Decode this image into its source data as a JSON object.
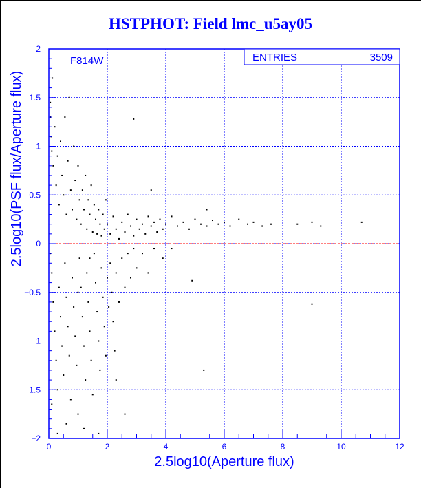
{
  "chart_data": {
    "type": "scatter",
    "title": "HSTPHOT: Field lmc_u5ay05",
    "xlabel": "2.5log10(Aperture flux)",
    "ylabel": "2.5log10(PSF flux/Aperture flux)",
    "xlim": [
      0,
      12
    ],
    "ylim": [
      -2,
      2
    ],
    "xticks": [
      "0",
      "2",
      "4",
      "6",
      "8",
      "10",
      "12"
    ],
    "yticks": [
      "2",
      "1.5",
      "1",
      "0.5",
      "0",
      "-0.5",
      "-1",
      "-1.5",
      "-2"
    ],
    "grid": true,
    "annotation": "F814W",
    "stats_box": {
      "label": "ENTRIES",
      "value": "3509"
    },
    "reference_line": {
      "y": 0,
      "color": "#ff0000"
    },
    "marker_color": "#000000",
    "points": [
      [
        0.05,
        1.45
      ],
      [
        0.05,
        1.3
      ],
      [
        0.08,
        1.1
      ],
      [
        0.1,
        0.95
      ],
      [
        0.12,
        1.7
      ],
      [
        0.15,
        0.8
      ],
      [
        0.2,
        1.2
      ],
      [
        0.25,
        0.6
      ],
      [
        0.3,
        0.9
      ],
      [
        0.35,
        0.4
      ],
      [
        0.4,
        1.05
      ],
      [
        0.45,
        0.7
      ],
      [
        0.5,
        0.5
      ],
      [
        0.55,
        1.3
      ],
      [
        0.6,
        0.3
      ],
      [
        0.65,
        0.85
      ],
      [
        0.7,
        1.5
      ],
      [
        0.75,
        0.55
      ],
      [
        0.8,
        0.35
      ],
      [
        0.85,
        1.0
      ],
      [
        0.9,
        0.65
      ],
      [
        0.95,
        0.25
      ],
      [
        1.0,
        0.8
      ],
      [
        1.05,
        0.45
      ],
      [
        1.1,
        0.2
      ],
      [
        1.15,
        0.55
      ],
      [
        1.2,
        0.35
      ],
      [
        1.25,
        0.7
      ],
      [
        1.3,
        0.15
      ],
      [
        1.35,
        0.45
      ],
      [
        1.4,
        0.3
      ],
      [
        1.45,
        0.6
      ],
      [
        1.5,
        0.12
      ],
      [
        1.55,
        0.4
      ],
      [
        1.6,
        0.25
      ],
      [
        1.65,
        0.1
      ],
      [
        1.7,
        0.35
      ],
      [
        1.75,
        0.2
      ],
      [
        1.8,
        0.08
      ],
      [
        1.85,
        0.3
      ],
      [
        1.9,
        0.15
      ],
      [
        1.95,
        0.45
      ],
      [
        2.0,
        0.2
      ],
      [
        2.1,
        0.1
      ],
      [
        2.2,
        0.28
      ],
      [
        2.3,
        0.15
      ],
      [
        2.4,
        0.05
      ],
      [
        2.5,
        0.22
      ],
      [
        2.6,
        0.12
      ],
      [
        2.7,
        0.3
      ],
      [
        2.8,
        0.18
      ],
      [
        2.9,
        0.08
      ],
      [
        3.0,
        0.25
      ],
      [
        3.1,
        0.15
      ],
      [
        3.2,
        0.2
      ],
      [
        3.3,
        0.1
      ],
      [
        3.4,
        0.28
      ],
      [
        3.5,
        0.18
      ],
      [
        3.6,
        0.22
      ],
      [
        3.7,
        0.12
      ],
      [
        3.8,
        0.25
      ],
      [
        3.9,
        0.15
      ],
      [
        4.0,
        0.2
      ],
      [
        4.2,
        0.28
      ],
      [
        4.4,
        0.18
      ],
      [
        4.6,
        0.22
      ],
      [
        4.8,
        0.15
      ],
      [
        5.0,
        0.25
      ],
      [
        5.2,
        0.2
      ],
      [
        5.4,
        0.18
      ],
      [
        5.6,
        0.24
      ],
      [
        5.8,
        0.2
      ],
      [
        6.0,
        0.22
      ],
      [
        6.2,
        0.18
      ],
      [
        6.5,
        0.25
      ],
      [
        6.8,
        0.2
      ],
      [
        7.0,
        0.22
      ],
      [
        7.3,
        0.18
      ],
      [
        7.6,
        0.2
      ],
      [
        8.5,
        0.2
      ],
      [
        9.0,
        0.22
      ],
      [
        9.3,
        0.18
      ],
      [
        10.7,
        0.22
      ],
      [
        2.9,
        1.28
      ],
      [
        5.4,
        0.35
      ],
      [
        3.5,
        0.55
      ],
      [
        0.05,
        -0.1
      ],
      [
        0.1,
        -0.3
      ],
      [
        0.15,
        -0.6
      ],
      [
        0.2,
        -0.9
      ],
      [
        0.25,
        -1.2
      ],
      [
        0.3,
        -1.5
      ],
      [
        0.35,
        -0.45
      ],
      [
        0.4,
        -0.75
      ],
      [
        0.45,
        -1.05
      ],
      [
        0.5,
        -1.35
      ],
      [
        0.55,
        -0.2
      ],
      [
        0.6,
        -0.55
      ],
      [
        0.65,
        -0.85
      ],
      [
        0.7,
        -1.15
      ],
      [
        0.75,
        -1.6
      ],
      [
        0.8,
        -0.35
      ],
      [
        0.85,
        -0.65
      ],
      [
        0.9,
        -0.95
      ],
      [
        0.95,
        -1.25
      ],
      [
        1.0,
        -1.75
      ],
      [
        1.05,
        -0.15
      ],
      [
        1.1,
        -0.45
      ],
      [
        1.15,
        -0.75
      ],
      [
        1.2,
        -1.05
      ],
      [
        1.25,
        -1.4
      ],
      [
        1.3,
        -0.3
      ],
      [
        1.35,
        -0.6
      ],
      [
        1.4,
        -0.9
      ],
      [
        1.45,
        -1.2
      ],
      [
        1.5,
        -1.55
      ],
      [
        1.55,
        -0.1
      ],
      [
        1.6,
        -0.4
      ],
      [
        1.65,
        -0.7
      ],
      [
        1.7,
        -1.0
      ],
      [
        1.75,
        -1.3
      ],
      [
        1.8,
        -0.25
      ],
      [
        1.85,
        -0.55
      ],
      [
        1.9,
        -0.85
      ],
      [
        1.95,
        -1.15
      ],
      [
        2.0,
        -0.35
      ],
      [
        2.05,
        -0.65
      ],
      [
        2.1,
        -0.2
      ],
      [
        2.15,
        -0.5
      ],
      [
        2.2,
        -0.8
      ],
      [
        2.25,
        -1.1
      ],
      [
        2.3,
        -0.3
      ],
      [
        2.4,
        -0.6
      ],
      [
        2.5,
        -0.15
      ],
      [
        2.6,
        -0.45
      ],
      [
        2.7,
        -0.1
      ],
      [
        2.8,
        -0.35
      ],
      [
        2.9,
        -0.05
      ],
      [
        3.0,
        -0.25
      ],
      [
        3.2,
        -0.1
      ],
      [
        3.4,
        -0.3
      ],
      [
        3.6,
        -0.05
      ],
      [
        3.9,
        -0.15
      ],
      [
        4.2,
        -0.05
      ],
      [
        1.2,
        -1.9
      ],
      [
        1.7,
        -1.95
      ],
      [
        2.6,
        -1.75
      ],
      [
        0.6,
        -1.85
      ],
      [
        0.3,
        -1.95
      ],
      [
        0.1,
        -1.65
      ],
      [
        5.3,
        -1.3
      ],
      [
        9.0,
        -0.62
      ],
      [
        4.9,
        -0.38
      ],
      [
        2.3,
        -1.4
      ],
      [
        1.0,
        -0.5
      ],
      [
        1.4,
        -0.15
      ]
    ]
  }
}
